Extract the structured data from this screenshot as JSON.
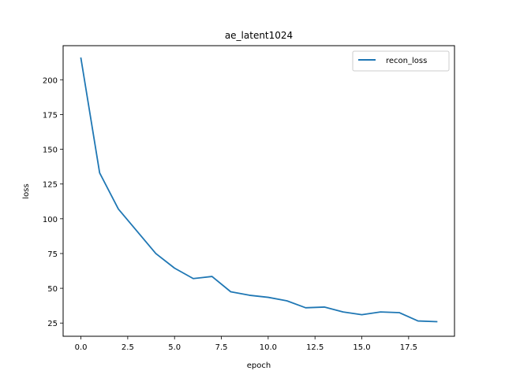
{
  "chart_data": {
    "type": "line",
    "title": "ae_latent1024",
    "xlabel": "epoch",
    "ylabel": "loss",
    "xlim": [
      -0.95,
      19.95
    ],
    "ylim": [
      15.5,
      224.5
    ],
    "xticks": [
      0,
      2.5,
      5,
      7.5,
      10,
      12.5,
      15,
      17.5
    ],
    "xtick_labels": [
      "0.0",
      "2.5",
      "5.0",
      "7.5",
      "10.0",
      "12.5",
      "15.0",
      "17.5"
    ],
    "yticks": [
      25,
      50,
      75,
      100,
      125,
      150,
      175,
      200
    ],
    "ytick_labels": [
      "25",
      "50",
      "75",
      "100",
      "125",
      "150",
      "175",
      "200"
    ],
    "grid": false,
    "legend_position": "top-right",
    "series": [
      {
        "name": "recon_loss",
        "color": "#1f77b4",
        "x": [
          0,
          1,
          2,
          3,
          4,
          5,
          6,
          7,
          8,
          9,
          10,
          11,
          12,
          13,
          14,
          15,
          16,
          17,
          18,
          19
        ],
        "values": [
          215.5,
          133,
          107,
          91,
          75,
          64.5,
          57,
          58.5,
          47.5,
          45,
          43.5,
          41,
          36,
          36.5,
          33,
          31,
          33,
          32.5,
          26.5,
          26
        ]
      }
    ]
  }
}
